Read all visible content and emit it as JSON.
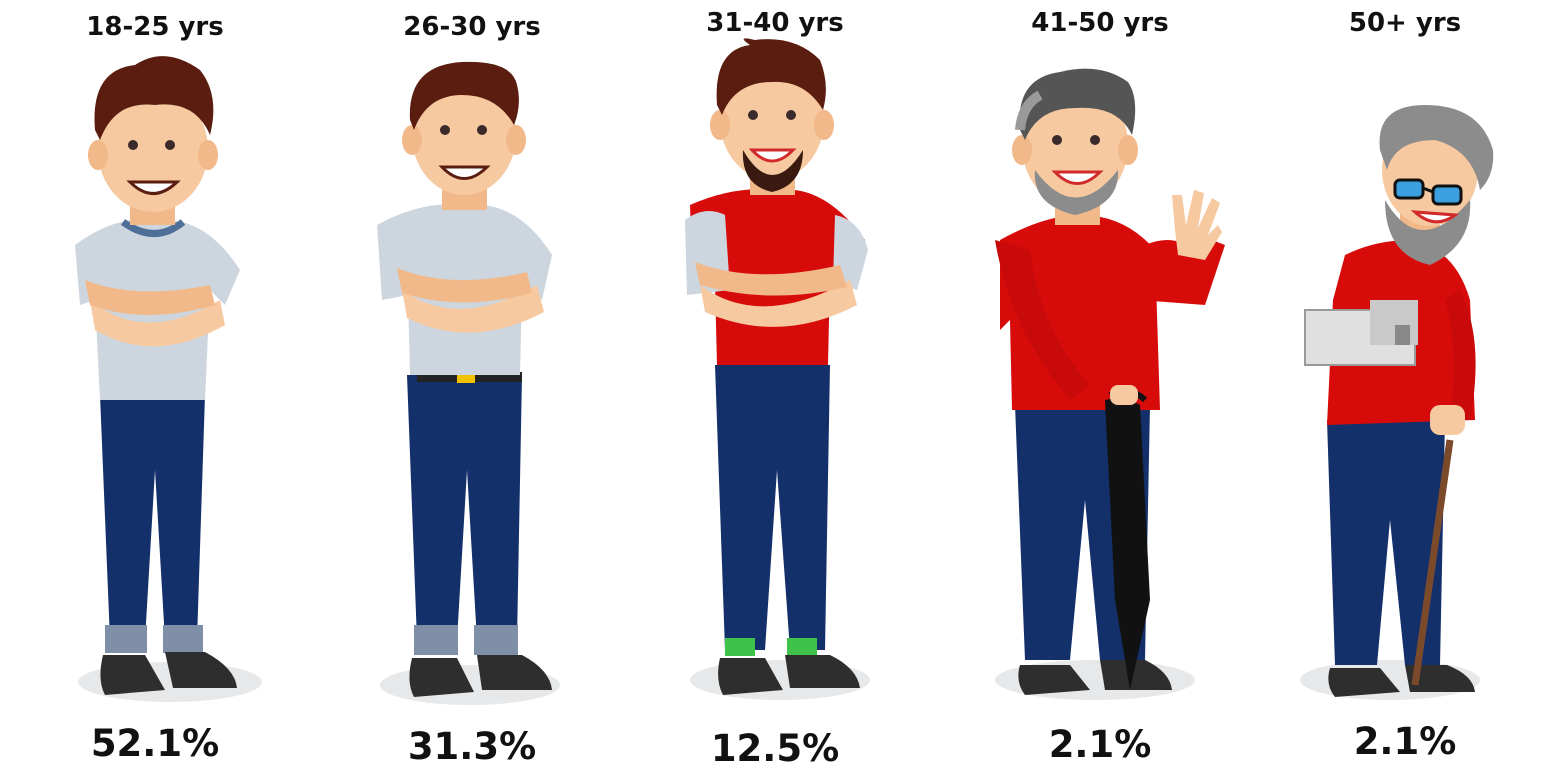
{
  "groups": [
    {
      "age": "18-25 yrs",
      "percent": "52.1%"
    },
    {
      "age": "26-30 yrs",
      "percent": "31.3%"
    },
    {
      "age": "31-40 yrs",
      "percent": "12.5%"
    },
    {
      "age": "41-50 yrs",
      "percent": "2.1%"
    },
    {
      "age": "50+ yrs",
      "percent": "2.1%"
    }
  ],
  "colors": {
    "pants": "#13306b",
    "red_shirt": "#d80b0b",
    "tshirt": "#cdd6df",
    "skin": "#f6c9a0",
    "hair_brown": "#5a1d10",
    "hair_grey": "#8c8c8c",
    "shoe": "#2e2e2e",
    "shadow": "#e6e8ea"
  }
}
